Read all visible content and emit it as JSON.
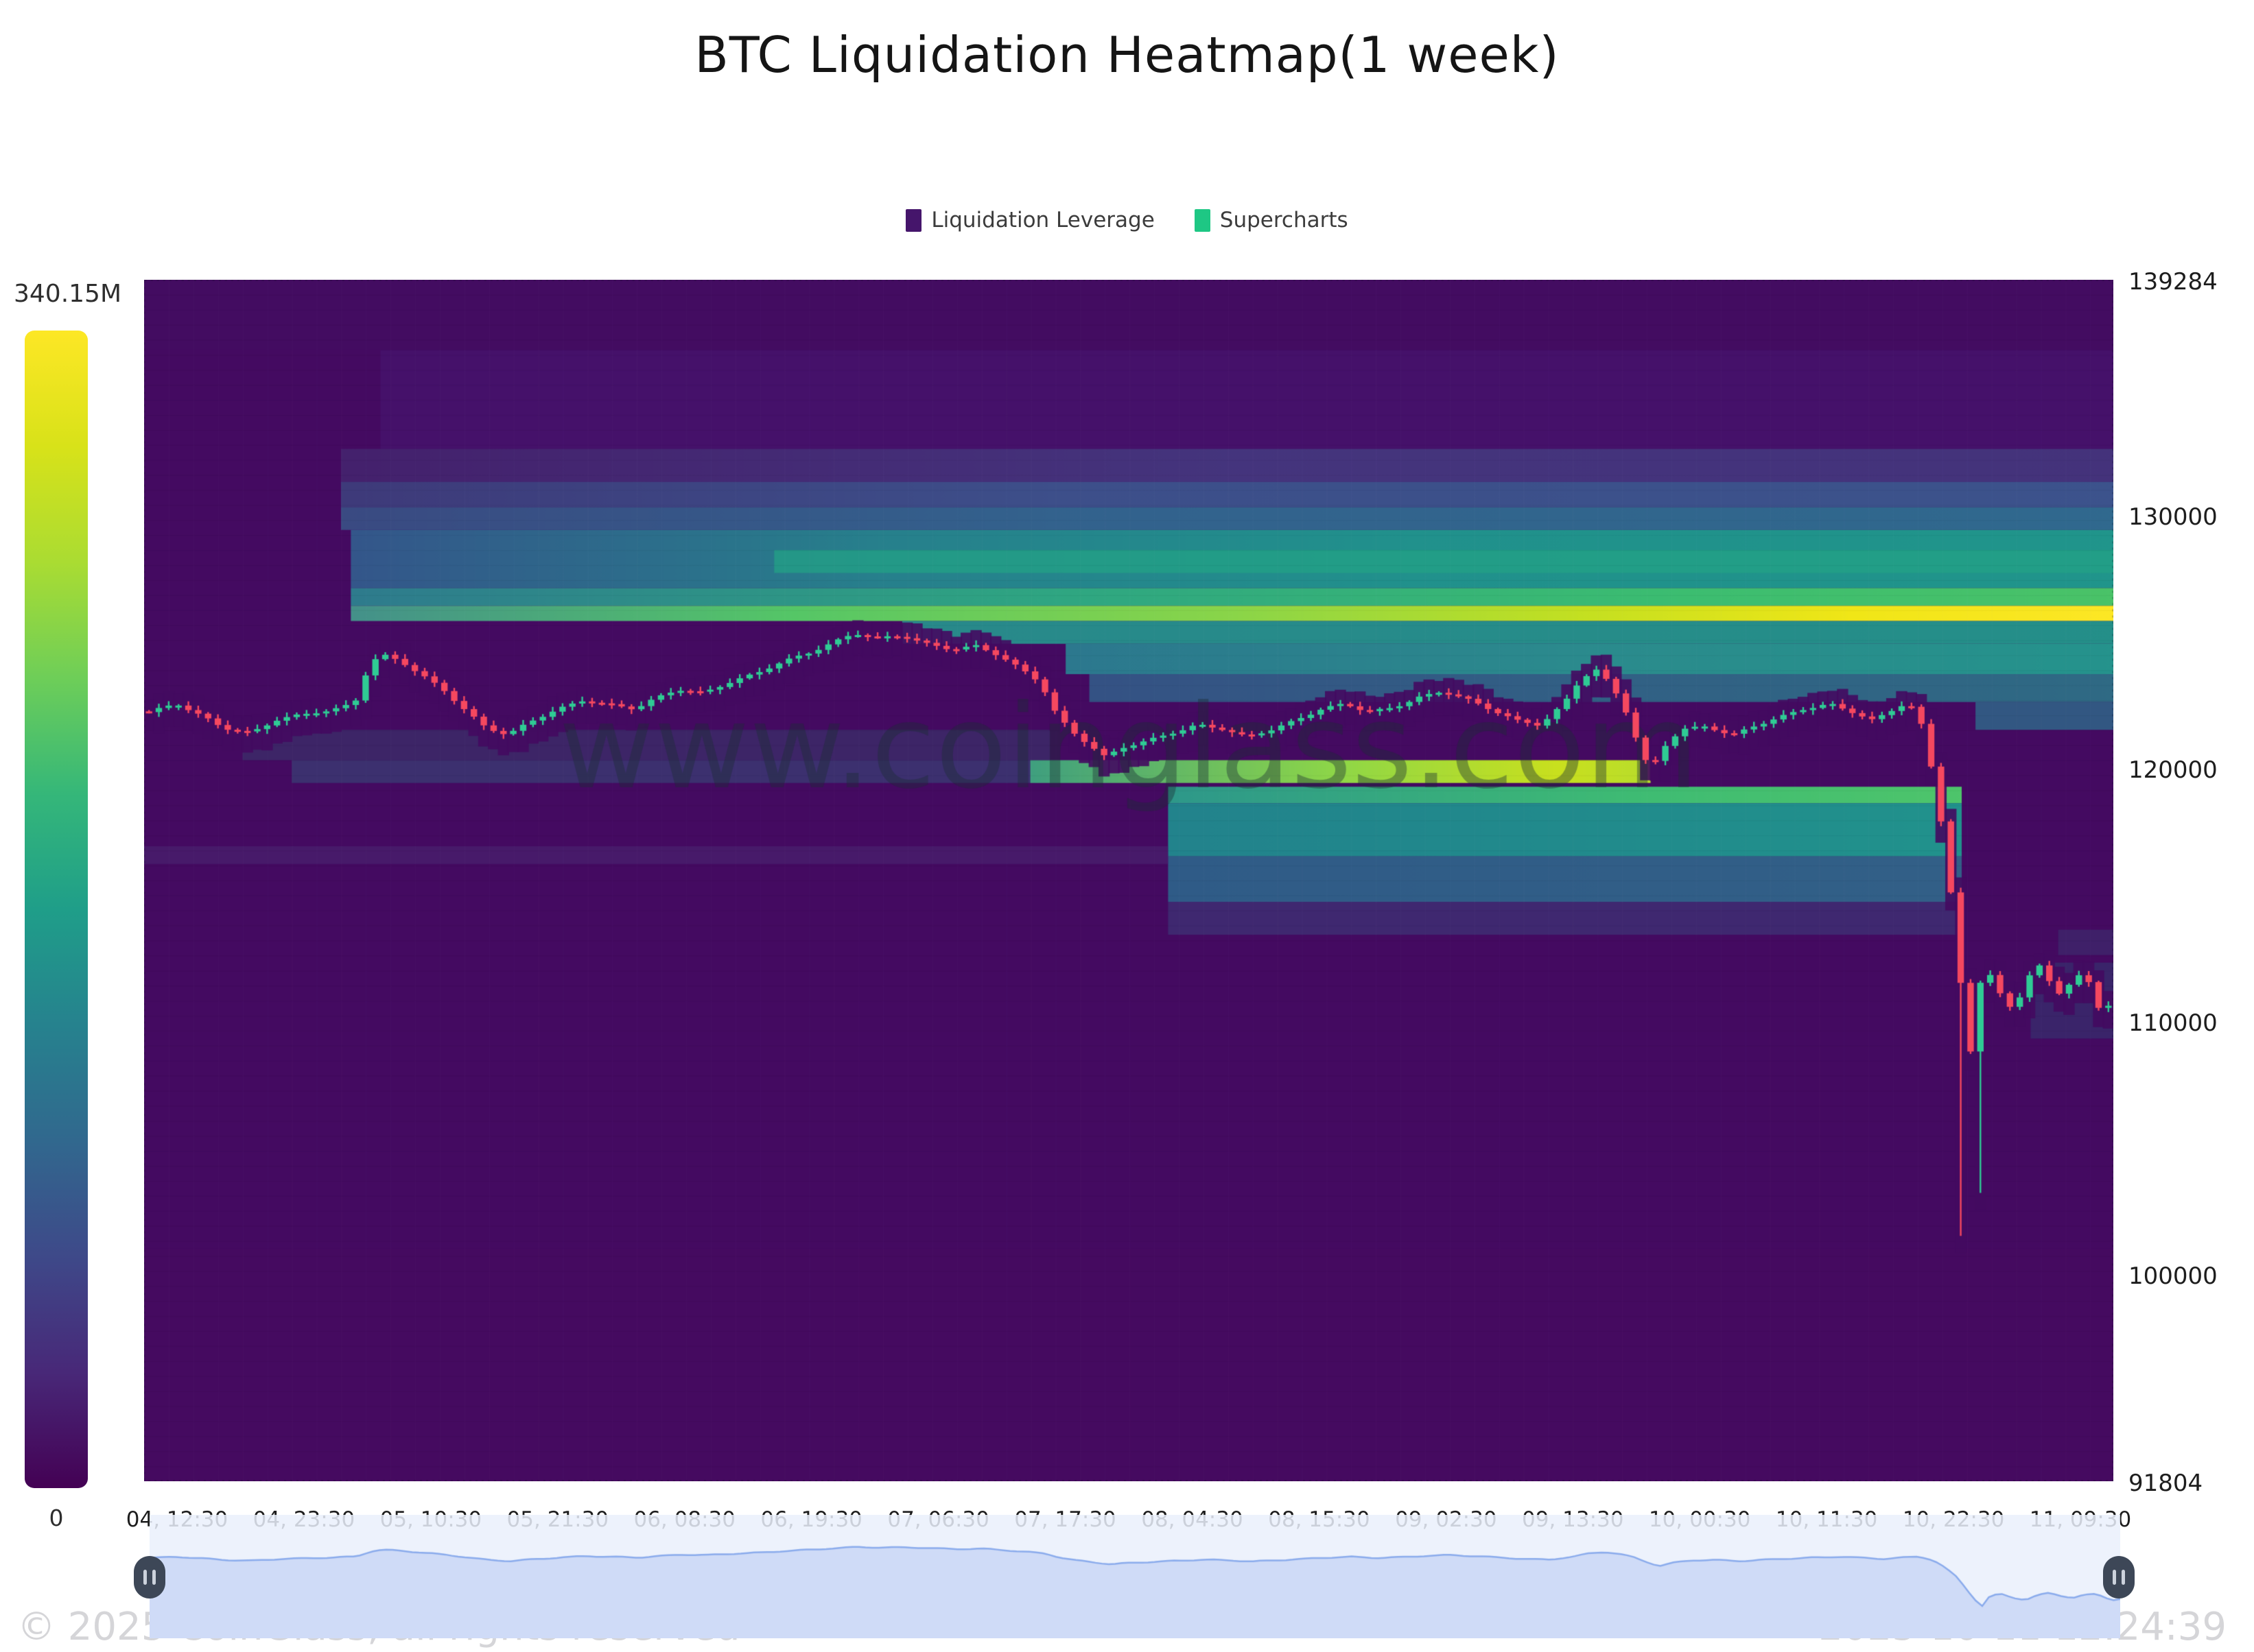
{
  "header": {
    "title": "BTC Liquidation Heatmap(1 week)"
  },
  "legend": [
    {
      "label": "Liquidation Leverage",
      "color": "#45156b"
    },
    {
      "label": "Supercharts",
      "color": "#1ec784"
    }
  ],
  "colorbar": {
    "max_label": "340.15M",
    "min_label": "0",
    "gradient": [
      "#fde725",
      "#d8e219",
      "#aadc32",
      "#6ece58",
      "#35b779",
      "#1f9e89",
      "#26828e",
      "#31688e",
      "#3e4989",
      "#482878",
      "#440154"
    ]
  },
  "watermark": "www.coinglass.com",
  "footer": {
    "copyright": "© 2025 CoinGlass, all rights reserved",
    "timestamp": "2025-10-11 12:24:39"
  },
  "chart_data": {
    "type": "heatmap+candlestick",
    "title": "BTC Liquidation Heatmap(1 week)",
    "legend_entries": [
      "Liquidation Leverage",
      "Supercharts"
    ],
    "colorbar_max": "340.15M",
    "colorbar_min": "0",
    "y_axis": {
      "min": 91804,
      "max": 139284,
      "tick_labels": [
        "139284",
        "130000",
        "120000",
        "110000",
        "100000",
        "91804"
      ],
      "tick_prices": [
        139284,
        130000,
        120000,
        110000,
        100000,
        91804
      ]
    },
    "x_axis": {
      "tick_labels": [
        "04, 12:30",
        "04, 23:30",
        "05, 10:30",
        "05, 21:30",
        "06, 08:30",
        "06, 19:30",
        "07, 06:30",
        "07, 17:30",
        "08, 04:30",
        "08, 15:30",
        "09, 02:30",
        "09, 13:30",
        "10, 00:30",
        "10, 11:30",
        "10, 22:30",
        "11, 09:30"
      ]
    },
    "candles": {
      "up_color": "#2fcb94",
      "down_color": "#f5485f",
      "count": 200
    },
    "price_path": [
      [
        0.0,
        122200
      ],
      [
        0.014,
        122500
      ],
      [
        0.028,
        122000
      ],
      [
        0.038,
        121600
      ],
      [
        0.052,
        121400
      ],
      [
        0.066,
        121900
      ],
      [
        0.08,
        122100
      ],
      [
        0.094,
        122300
      ],
      [
        0.105,
        122600
      ],
      [
        0.112,
        124000
      ],
      [
        0.118,
        124500
      ],
      [
        0.128,
        124200
      ],
      [
        0.14,
        123600
      ],
      [
        0.15,
        123100
      ],
      [
        0.163,
        122200
      ],
      [
        0.172,
        121600
      ],
      [
        0.183,
        121300
      ],
      [
        0.195,
        121800
      ],
      [
        0.208,
        122300
      ],
      [
        0.222,
        122700
      ],
      [
        0.235,
        122500
      ],
      [
        0.248,
        122300
      ],
      [
        0.258,
        122700
      ],
      [
        0.27,
        123100
      ],
      [
        0.283,
        123000
      ],
      [
        0.297,
        123400
      ],
      [
        0.31,
        123700
      ],
      [
        0.324,
        124200
      ],
      [
        0.338,
        124600
      ],
      [
        0.35,
        125000
      ],
      [
        0.36,
        125300
      ],
      [
        0.372,
        125100
      ],
      [
        0.385,
        125200
      ],
      [
        0.398,
        124900
      ],
      [
        0.41,
        124700
      ],
      [
        0.422,
        124800
      ],
      [
        0.434,
        124400
      ],
      [
        0.445,
        123900
      ],
      [
        0.455,
        123400
      ],
      [
        0.462,
        122300
      ],
      [
        0.47,
        121500
      ],
      [
        0.48,
        120900
      ],
      [
        0.488,
        120400
      ],
      [
        0.498,
        120800
      ],
      [
        0.51,
        121100
      ],
      [
        0.522,
        121400
      ],
      [
        0.535,
        121700
      ],
      [
        0.548,
        121500
      ],
      [
        0.56,
        121200
      ],
      [
        0.572,
        121500
      ],
      [
        0.585,
        121900
      ],
      [
        0.598,
        122300
      ],
      [
        0.61,
        122500
      ],
      [
        0.622,
        122200
      ],
      [
        0.635,
        122400
      ],
      [
        0.648,
        122800
      ],
      [
        0.66,
        123000
      ],
      [
        0.672,
        122700
      ],
      [
        0.685,
        122300
      ],
      [
        0.698,
        121900
      ],
      [
        0.71,
        121700
      ],
      [
        0.722,
        122500
      ],
      [
        0.73,
        123400
      ],
      [
        0.738,
        123900
      ],
      [
        0.746,
        123300
      ],
      [
        0.753,
        122400
      ],
      [
        0.76,
        121000
      ],
      [
        0.766,
        119900
      ],
      [
        0.774,
        120900
      ],
      [
        0.782,
        121500
      ],
      [
        0.795,
        121600
      ],
      [
        0.808,
        121300
      ],
      [
        0.82,
        121700
      ],
      [
        0.832,
        122000
      ],
      [
        0.845,
        122300
      ],
      [
        0.858,
        122500
      ],
      [
        0.87,
        122200
      ],
      [
        0.88,
        121900
      ],
      [
        0.89,
        122300
      ],
      [
        0.898,
        122600
      ],
      [
        0.905,
        121600
      ],
      [
        0.911,
        119500
      ],
      [
        0.917,
        116800
      ],
      [
        0.922,
        113500
      ],
      [
        0.9255,
        110800
      ],
      [
        0.93,
        108600
      ],
      [
        0.934,
        111500
      ],
      [
        0.94,
        111900
      ],
      [
        0.946,
        110900
      ],
      [
        0.952,
        110300
      ],
      [
        0.958,
        111600
      ],
      [
        0.964,
        112300
      ],
      [
        0.97,
        111500
      ],
      [
        0.976,
        110900
      ],
      [
        0.982,
        111700
      ],
      [
        0.988,
        112000
      ],
      [
        0.992,
        111100
      ],
      [
        0.996,
        110300
      ],
      [
        1.0,
        110600
      ]
    ],
    "special_wicks": [
      {
        "u": 0.9255,
        "low": 101500
      },
      {
        "u": 0.934,
        "low": 103200
      }
    ],
    "heatmap": {
      "base": "#440a61",
      "bands": [
        {
          "p1": 136500,
          "p2": 139284,
          "u1": 0,
          "u2": 1,
          "color": "#430e62",
          "a": 0.55
        },
        {
          "p1": 132600,
          "p2": 136500,
          "u1": 0.12,
          "u2": 1,
          "color": "#48207a",
          "a": 0.35
        },
        {
          "p1": 131300,
          "p2": 132600,
          "u1": 0.1,
          "u2": 1,
          "stops": [
            [
              0,
              "#44256f"
            ],
            [
              0.5,
              "#453c82"
            ],
            [
              1,
              "#443a80"
            ]
          ],
          "a": 0.85
        },
        {
          "p1": 130300,
          "p2": 131300,
          "u1": 0.1,
          "u2": 1,
          "stops": [
            [
              0,
              "#3e3a7a"
            ],
            [
              0.4,
              "#3d4f8a"
            ],
            [
              1,
              "#3c538c"
            ]
          ]
        },
        {
          "p1": 129400,
          "p2": 130300,
          "u1": 0.1,
          "u2": 1,
          "stops": [
            [
              0,
              "#3a4a82"
            ],
            [
              0.4,
              "#33628d"
            ],
            [
              1,
              "#30698e"
            ]
          ]
        },
        {
          "p1": 127100,
          "p2": 129400,
          "u1": 0.105,
          "u2": 1,
          "stops": [
            [
              0,
              "#34568a"
            ],
            [
              0.3,
              "#27808c"
            ],
            [
              0.6,
              "#21918c"
            ],
            [
              1,
              "#20958b"
            ]
          ]
        },
        {
          "p1": 127700,
          "p2": 128600,
          "u1": 0.32,
          "u2": 1,
          "color": "#23a285",
          "a": 0.75
        },
        {
          "p1": 126400,
          "p2": 127100,
          "u1": 0.105,
          "u2": 1,
          "stops": [
            [
              0,
              "#2e7b8d"
            ],
            [
              0.4,
              "#2fa682"
            ],
            [
              0.75,
              "#3cbd71"
            ],
            [
              1,
              "#4ac368"
            ]
          ]
        },
        {
          "p1": 125800,
          "p2": 126400,
          "u1": 0.105,
          "u2": 1,
          "stops": [
            [
              0,
              "#44918a"
            ],
            [
              0.25,
              "#55c667"
            ],
            [
              0.5,
              "#8ad549"
            ],
            [
              0.7,
              "#c4e021"
            ],
            [
              0.85,
              "#f0e617"
            ],
            [
              1,
              "#fde725"
            ]
          ]
        },
        {
          "p1": 124900,
          "p2": 125800,
          "u1": 0.385,
          "u2": 1,
          "stops": [
            [
              0,
              "#27908d"
            ],
            [
              1,
              "#23968b"
            ]
          ],
          "a": 0.95
        },
        {
          "p1": 123700,
          "p2": 124900,
          "u1": 0.468,
          "u2": 1,
          "stops": [
            [
              0,
              "#2c788e"
            ],
            [
              0.5,
              "#2b8b8d"
            ],
            [
              1,
              "#25938c"
            ]
          ]
        },
        {
          "p1": 122600,
          "p2": 123700,
          "u1": 0.48,
          "u2": 1,
          "stops": [
            [
              0,
              "#31648d"
            ],
            [
              0.5,
              "#2d768e"
            ],
            [
              1,
              "#2a828d"
            ]
          ],
          "a": 0.8
        },
        {
          "p1": 121500,
          "p2": 122600,
          "u1": 0.93,
          "u2": 1,
          "color": "#2c728e",
          "a": 0.75
        },
        {
          "p1": 119400,
          "p2": 120300,
          "u1": 0.075,
          "u2": 0.45,
          "color": "#33557e",
          "a": 0.5
        },
        {
          "p1": 119400,
          "p2": 120300,
          "u1": 0.45,
          "u2": 0.765,
          "stops": [
            [
              0,
              "#3f9f7f"
            ],
            [
              0.5,
              "#8fd747"
            ],
            [
              0.85,
              "#c9e01e"
            ],
            [
              1,
              "#b8dd2c"
            ]
          ]
        },
        {
          "p1": 118600,
          "p2": 119250,
          "u1": 0.52,
          "u2": 0.923,
          "stops": [
            [
              0,
              "#2e988a"
            ],
            [
              0.6,
              "#3fbc73"
            ],
            [
              1,
              "#4ec56b"
            ]
          ]
        },
        {
          "p1": 116500,
          "p2": 118600,
          "u1": 0.52,
          "u2": 0.923,
          "stops": [
            [
              0,
              "#22838c"
            ],
            [
              1,
              "#21928c"
            ]
          ]
        },
        {
          "p1": 114700,
          "p2": 116500,
          "u1": 0.52,
          "u2": 0.923,
          "stops": [
            [
              0,
              "#2c6a8e"
            ],
            [
              1,
              "#2f6f8e"
            ]
          ],
          "a": 0.85
        },
        {
          "p1": 113400,
          "p2": 114700,
          "u1": 0.52,
          "u2": 0.923,
          "color": "#3a4e82",
          "a": 0.45
        },
        {
          "p1": 120300,
          "p2": 121500,
          "u1": 0.05,
          "u2": 0.46,
          "color": "#36476f",
          "a": 0.45
        },
        {
          "p1": 116200,
          "p2": 116900,
          "u1": 0.0,
          "u2": 0.52,
          "color": "#492a74",
          "a": 0.5
        },
        {
          "p1": 109300,
          "p2": 112300,
          "u1": 0.958,
          "u2": 1,
          "color": "#2d4a78",
          "a": 0.42
        },
        {
          "p1": 112600,
          "p2": 113600,
          "u1": 0.972,
          "u2": 1,
          "color": "#34557f",
          "a": 0.3
        },
        {
          "p1": 91804,
          "p2": 101000,
          "u1": 0,
          "u2": 1,
          "color": "#45095f",
          "a": 0.5
        }
      ]
    }
  }
}
